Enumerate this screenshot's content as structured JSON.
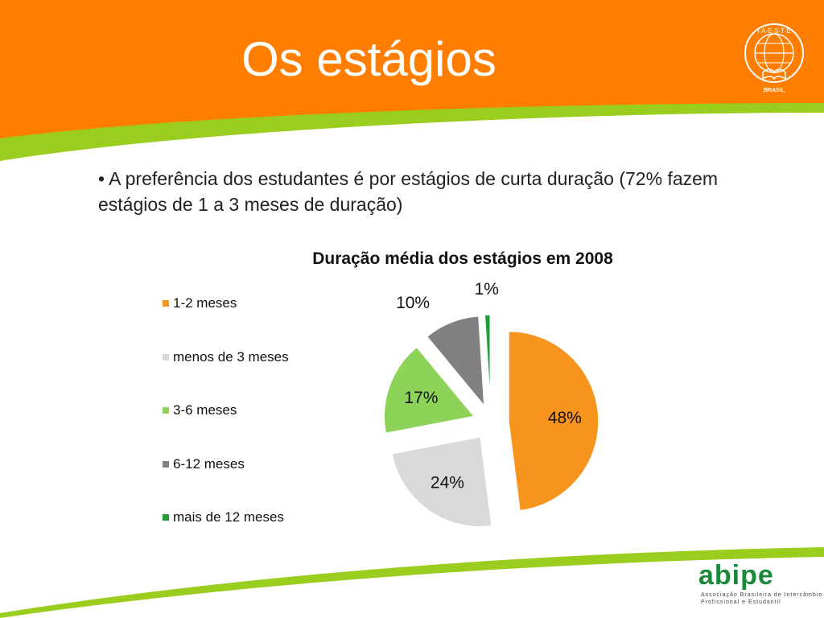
{
  "slide": {
    "title": "Os estágios",
    "bullet": "• A preferência dos estudantes é por estágios de curta duração (72% fazem estágios de 1 a 3 meses de duração)"
  },
  "logos": {
    "iaeste_text": "I·A·E·S·T·E",
    "iaeste_country": "BRASIL",
    "abipe_name": "abipe",
    "abipe_tagline_1": "Associação Brasileira de Intercâmbio",
    "abipe_tagline_2": "Profissional e Estudantil"
  },
  "colors": {
    "header_orange": "#ff7e00",
    "accent_green": "#9acd1e",
    "logo_green": "#1a8a3a"
  },
  "chart_data": {
    "type": "pie",
    "title": "Duração média dos estágios em 2008",
    "legend_position": "left",
    "exploded": true,
    "categories": [
      "1-2 meses",
      "menos de 3 meses",
      "3-6 meses",
      "6-12 meses",
      "mais de 12 meses"
    ],
    "values": [
      48,
      24,
      17,
      10,
      1
    ],
    "labels": [
      "48%",
      "24%",
      "17%",
      "10%",
      "1%"
    ],
    "colors": [
      "#f7941d",
      "#d9d9d9",
      "#8dd35a",
      "#808080",
      "#1f9e35"
    ]
  }
}
